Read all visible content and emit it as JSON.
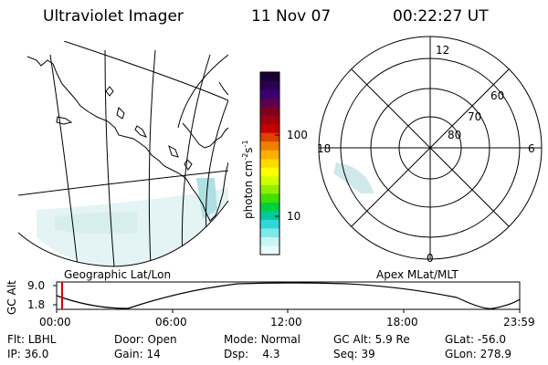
{
  "header": {
    "title": "Ultraviolet Imager",
    "date": "11 Nov 07",
    "time": "00:22:27 UT"
  },
  "left_panel": {
    "label": "Geographic Lat/Lon"
  },
  "colorbar": {
    "unit": "photon cm^-2 s^-1",
    "unit_base": "photon cm",
    "unit_exp1": "-2",
    "unit_mid": "s",
    "unit_exp2": "-1",
    "ticks": [
      "100",
      "10"
    ],
    "colors": [
      "#1a0033",
      "#2a0050",
      "#3a0070",
      "#5a0050",
      "#800020",
      "#a00010",
      "#c40000",
      "#e04000",
      "#f08000",
      "#ffb000",
      "#ffd800",
      "#ffff00",
      "#d0ff00",
      "#90f000",
      "#40e000",
      "#00d040",
      "#00c8a0",
      "#30d8d8",
      "#80e8e8",
      "#c8f4f4",
      "#e8fafa"
    ]
  },
  "right_panel": {
    "label": "Apex MLat/MLT",
    "mlt_labels": {
      "top": "12",
      "left": "18",
      "right": "6",
      "bottom": "0"
    },
    "lat_labels": [
      "60",
      "70",
      "80"
    ]
  },
  "timeline": {
    "ylabel": "GC Alt",
    "y_ticks": [
      "9.0",
      "1.8"
    ],
    "x_ticks": [
      "00:00",
      "06:00",
      "12:00",
      "18:00",
      "23:59"
    ]
  },
  "status": {
    "row1": [
      {
        "label": "Flt:",
        "value": "LBHL"
      },
      {
        "label": "Door:",
        "value": "Open"
      },
      {
        "label": "Mode:",
        "value": "Normal"
      },
      {
        "label": "GC Alt:",
        "value": "5.9 Re"
      },
      {
        "label": "GLat:",
        "value": "-56.0"
      }
    ],
    "row2": [
      {
        "label": "IP:",
        "value": "36.0"
      },
      {
        "label": "Gain:",
        "value": "14"
      },
      {
        "label": "Dsp:",
        "value": "4.3"
      },
      {
        "label": "Seq:",
        "value": "39"
      },
      {
        "label": "GLon:",
        "value": "278.9"
      }
    ]
  }
}
